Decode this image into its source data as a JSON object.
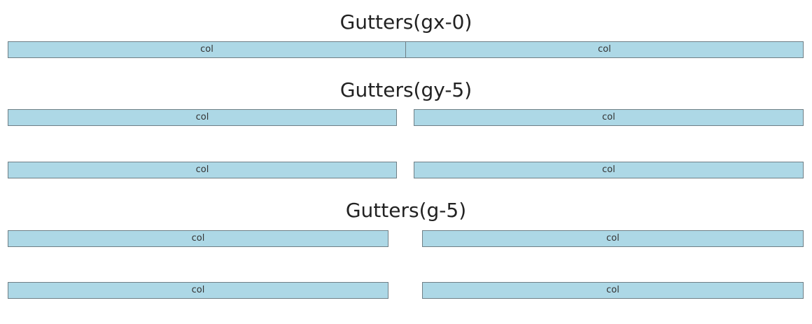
{
  "sections": [
    {
      "title": "Gutters(gx-0)",
      "cols": [
        "col",
        "col"
      ]
    },
    {
      "title": "Gutters(gy-5)",
      "cols": [
        "col",
        "col",
        "col",
        "col"
      ]
    },
    {
      "title": "Gutters(g-5)",
      "cols": [
        "col",
        "col",
        "col",
        "col"
      ]
    }
  ]
}
